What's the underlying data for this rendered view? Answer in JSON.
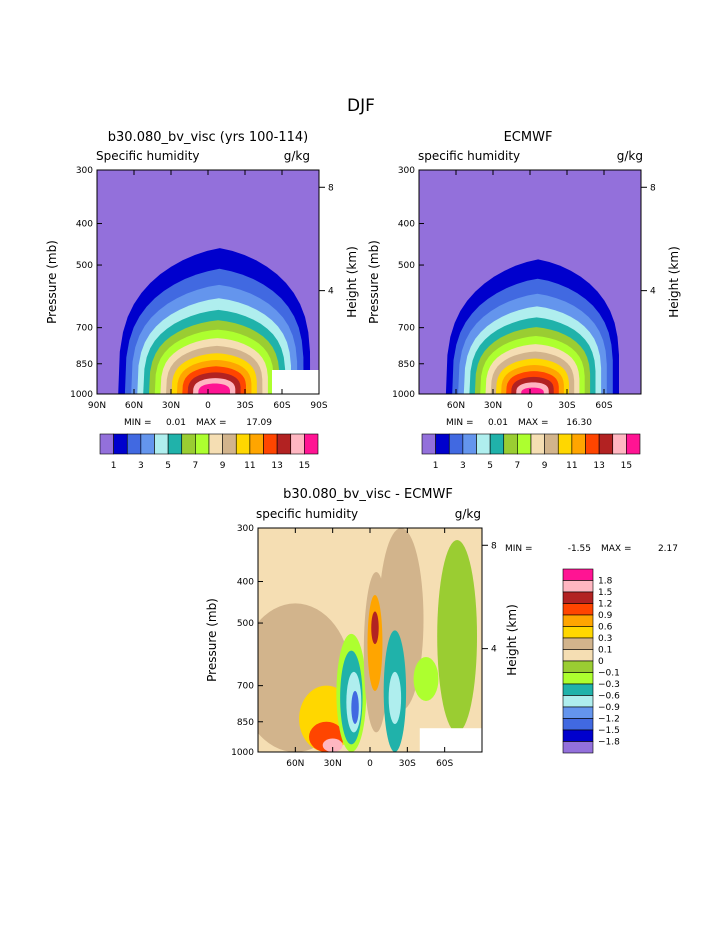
{
  "figure": {
    "title": "DJF"
  },
  "colors": {
    "scale": [
      "#9370DB",
      "#0000CD",
      "#4169E1",
      "#6495ED",
      "#AFEEEE",
      "#20B2AA",
      "#9ACD32",
      "#ADFF2F",
      "#F5DEB3",
      "#D2B48C",
      "#FFD700",
      "#FFA500",
      "#FF4500",
      "#B22222",
      "#FFB6C1",
      "#FF1493"
    ],
    "diff_scale": [
      "#9370DB",
      "#0000CD",
      "#4169E1",
      "#6495ED",
      "#AFEEEE",
      "#20B2AA",
      "#ADFF2F",
      "#9ACD32",
      "#F5DEB3",
      "#D2B48C",
      "#FFD700",
      "#FFA500",
      "#FF4500",
      "#B22222",
      "#FFB6C1",
      "#FF1493"
    ]
  },
  "chart_data": [
    {
      "type": "heatmap",
      "title": "b30.080_bv_visc (yrs 100-114)",
      "left_subtitle": "Specific humidity",
      "right_subtitle": "g/kg",
      "ylabel": "Pressure (mb)",
      "ylabel_right": "Height (km)",
      "x_ticks": [
        "90N",
        "60N",
        "30N",
        "0",
        "30S",
        "60S",
        "90S"
      ],
      "xlim": [
        90,
        -90
      ],
      "y_ticks": [
        300,
        400,
        500,
        700,
        850,
        1000
      ],
      "ylim": [
        1000,
        300
      ],
      "height_ticks": [
        8,
        4
      ],
      "min_label": "MIN =",
      "min_value": "0.01",
      "max_label": "MAX =",
      "max_value": "17.09",
      "levels": [
        0,
        1,
        2,
        3,
        4,
        5,
        6,
        7,
        8,
        9,
        10,
        11,
        12,
        13,
        14,
        15
      ],
      "level_labels": [
        "1",
        "3",
        "5",
        "7",
        "9",
        "11",
        "13",
        "15"
      ],
      "field": {
        "peak_lat": -5,
        "peak_value": 17.09,
        "surface_width_deg": 80,
        "top_pressure": 370
      }
    },
    {
      "type": "heatmap",
      "title": "ECMWF",
      "left_subtitle": "specific humidity",
      "right_subtitle": "g/kg",
      "ylabel": "Pressure (mb)",
      "ylabel_right": "Height (km)",
      "x_ticks": [
        "60N",
        "30N",
        "0",
        "30S",
        "60S"
      ],
      "xlim": [
        90,
        -90
      ],
      "y_ticks": [
        300,
        400,
        500,
        700,
        850,
        1000
      ],
      "ylim": [
        1000,
        300
      ],
      "height_ticks": [
        8,
        4
      ],
      "min_label": "MIN =",
      "min_value": "0.01",
      "max_label": "MAX =",
      "max_value": "16.30",
      "levels": [
        0,
        1,
        2,
        3,
        4,
        5,
        6,
        7,
        8,
        9,
        10,
        11,
        12,
        13,
        14,
        15
      ],
      "level_labels": [
        "1",
        "3",
        "5",
        "7",
        "9",
        "11",
        "13",
        "15"
      ],
      "field": {
        "peak_lat": -2,
        "peak_value": 16.3,
        "surface_width_deg": 72,
        "top_pressure": 400
      }
    },
    {
      "type": "heatmap",
      "title": "b30.080_bv_visc - ECMWF",
      "left_subtitle": "specific humidity",
      "right_subtitle": "g/kg",
      "ylabel": "Pressure (mb)",
      "ylabel_right": "Height (km)",
      "x_ticks": [
        "60N",
        "30N",
        "0",
        "30S",
        "60S"
      ],
      "xlim": [
        90,
        -90
      ],
      "y_ticks": [
        300,
        400,
        500,
        700,
        850,
        1000
      ],
      "ylim": [
        1000,
        300
      ],
      "height_ticks": [
        8,
        4
      ],
      "min_label": "MIN =",
      "min_value": "-1.55",
      "max_label": "MAX =",
      "max_value": "2.17",
      "levels": [
        -1.8,
        -1.5,
        -1.2,
        -0.9,
        -0.6,
        -0.3,
        -0.1,
        0,
        0.1,
        0.3,
        0.6,
        0.9,
        1.2,
        1.5,
        1.8
      ],
      "level_labels": [
        "1.8",
        "1.5",
        "1.2",
        "0.9",
        "0.6",
        "0.3",
        "0.1",
        "0",
        "−0.1",
        "−0.3",
        "−0.6",
        "−0.9",
        "−1.2",
        "−1.5",
        "−1.8"
      ]
    }
  ]
}
